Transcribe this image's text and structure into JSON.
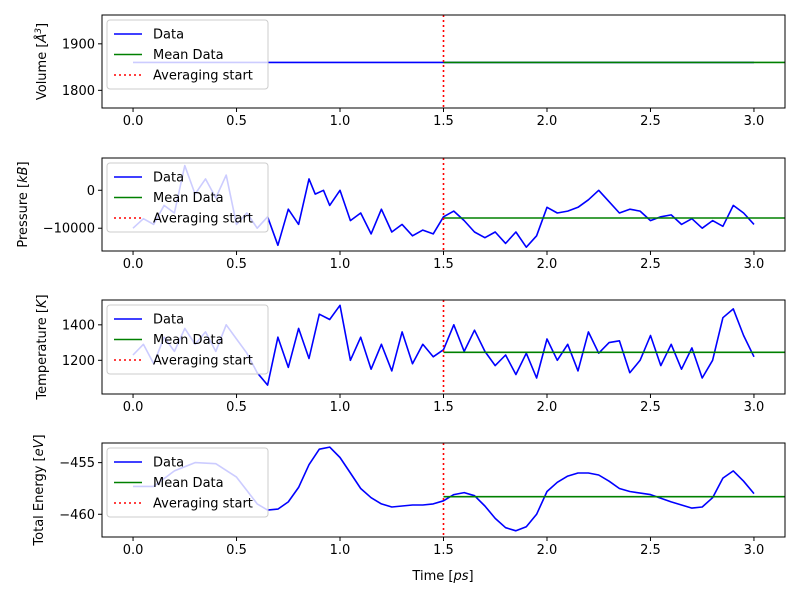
{
  "figure": {
    "xlabel": "Time [$ps$]"
  },
  "legend_labels": [
    "Data",
    "Mean Data",
    "Averaging start"
  ],
  "colors": {
    "data": "#0000ff",
    "mean": "#008000",
    "averaging_start": "#ff0000"
  },
  "chart_data": [
    {
      "type": "line",
      "ylabel": "Volume [$Å^3$]",
      "xlim": [
        -0.15,
        3.15
      ],
      "ylim": [
        1762,
        1962
      ],
      "xticks": [
        0.0,
        0.5,
        1.0,
        1.5,
        2.0,
        2.5,
        3.0
      ],
      "xtick_labels": [
        "0.0",
        "0.5",
        "1.0",
        "1.5",
        "2.0",
        "2.5",
        "3.0"
      ],
      "yticks": [
        1800,
        1900
      ],
      "ytick_labels": [
        "1800",
        "1900"
      ],
      "averaging_start": 1.5,
      "legend_position": "upper left",
      "series": [
        {
          "name": "Data",
          "x": [
            0.0,
            1.5,
            3.0
          ],
          "y": [
            1860,
            1860,
            1860
          ]
        },
        {
          "name": "Mean Data",
          "x": [
            1.5,
            3.15
          ],
          "y": [
            1860,
            1860
          ]
        }
      ]
    },
    {
      "type": "line",
      "ylabel": "Pressure [$kB$]",
      "xlim": [
        -0.15,
        3.15
      ],
      "ylim": [
        -16000,
        8500
      ],
      "xticks": [
        0.0,
        0.5,
        1.0,
        1.5,
        2.0,
        2.5,
        3.0
      ],
      "xtick_labels": [
        "0.0",
        "0.5",
        "1.0",
        "1.5",
        "2.0",
        "2.5",
        "3.0"
      ],
      "yticks": [
        -10000,
        0
      ],
      "ytick_labels": [
        "−10000",
        "0"
      ],
      "averaging_start": 1.5,
      "legend_position": "upper left",
      "series": [
        {
          "name": "Data",
          "x": [
            0.0,
            0.05,
            0.1,
            0.15,
            0.2,
            0.25,
            0.3,
            0.35,
            0.4,
            0.45,
            0.5,
            0.55,
            0.6,
            0.65,
            0.7,
            0.75,
            0.8,
            0.85,
            0.88,
            0.92,
            0.95,
            1.0,
            1.05,
            1.1,
            1.15,
            1.2,
            1.25,
            1.3,
            1.35,
            1.4,
            1.45,
            1.5,
            1.55,
            1.6,
            1.65,
            1.7,
            1.75,
            1.8,
            1.85,
            1.9,
            1.95,
            2.0,
            2.05,
            2.1,
            2.15,
            2.2,
            2.25,
            2.3,
            2.35,
            2.4,
            2.45,
            2.5,
            2.55,
            2.6,
            2.65,
            2.7,
            2.75,
            2.8,
            2.85,
            2.9,
            2.95,
            3.0
          ],
          "y": [
            -10000,
            -7500,
            -9000,
            -4000,
            -6000,
            6500,
            -1000,
            3000,
            -2000,
            4000,
            -9000,
            -6000,
            -10000,
            -7000,
            -14500,
            -5000,
            -9000,
            3000,
            -1000,
            0,
            -4000,
            0,
            -8000,
            -6000,
            -11500,
            -5000,
            -11000,
            -9000,
            -12000,
            -10500,
            -11500,
            -7000,
            -5500,
            -8000,
            -11000,
            -12500,
            -11000,
            -14000,
            -11000,
            -15000,
            -12000,
            -4500,
            -6000,
            -5500,
            -4500,
            -2500,
            0,
            -3000,
            -6000,
            -5000,
            -5500,
            -8000,
            -7000,
            -6500,
            -9000,
            -7500,
            -10000,
            -8000,
            -9500,
            -4000,
            -6000,
            -9000
          ]
        },
        {
          "name": "Mean Data",
          "x": [
            1.5,
            3.15
          ],
          "y": [
            -7300,
            -7300
          ]
        }
      ]
    },
    {
      "type": "line",
      "ylabel": "Temperature [$K$]",
      "xlim": [
        -0.15,
        3.15
      ],
      "ylim": [
        1010,
        1540
      ],
      "xticks": [
        0.0,
        0.5,
        1.0,
        1.5,
        2.0,
        2.5,
        3.0
      ],
      "xtick_labels": [
        "0.0",
        "0.5",
        "1.0",
        "1.5",
        "2.0",
        "2.5",
        "3.0"
      ],
      "yticks": [
        1200,
        1400
      ],
      "ytick_labels": [
        "1200",
        "1400"
      ],
      "averaging_start": 1.5,
      "legend_position": "upper left",
      "series": [
        {
          "name": "Data",
          "x": [
            0.0,
            0.05,
            0.1,
            0.15,
            0.2,
            0.25,
            0.3,
            0.35,
            0.4,
            0.45,
            0.5,
            0.55,
            0.6,
            0.65,
            0.7,
            0.75,
            0.8,
            0.85,
            0.9,
            0.95,
            1.0,
            1.05,
            1.1,
            1.15,
            1.2,
            1.25,
            1.3,
            1.35,
            1.4,
            1.45,
            1.5,
            1.55,
            1.6,
            1.65,
            1.7,
            1.75,
            1.8,
            1.85,
            1.9,
            1.95,
            2.0,
            2.05,
            2.1,
            2.15,
            2.2,
            2.25,
            2.3,
            2.35,
            2.4,
            2.45,
            2.5,
            2.55,
            2.6,
            2.65,
            2.7,
            2.75,
            2.8,
            2.85,
            2.9,
            2.95,
            3.0
          ],
          "y": [
            1230,
            1290,
            1180,
            1330,
            1250,
            1380,
            1290,
            1360,
            1250,
            1400,
            1320,
            1240,
            1130,
            1060,
            1330,
            1160,
            1380,
            1210,
            1460,
            1430,
            1510,
            1200,
            1330,
            1150,
            1290,
            1140,
            1360,
            1180,
            1290,
            1220,
            1260,
            1400,
            1250,
            1370,
            1250,
            1170,
            1230,
            1120,
            1240,
            1100,
            1320,
            1200,
            1290,
            1140,
            1360,
            1240,
            1300,
            1310,
            1130,
            1200,
            1340,
            1170,
            1290,
            1150,
            1270,
            1100,
            1200,
            1440,
            1490,
            1340,
            1220
          ]
        },
        {
          "name": "Mean Data",
          "x": [
            1.5,
            3.15
          ],
          "y": [
            1245,
            1245
          ]
        }
      ]
    },
    {
      "type": "line",
      "ylabel": "Total Energy [$eV$]",
      "xlim": [
        -0.15,
        3.15
      ],
      "ylim": [
        -462.2,
        -453.1
      ],
      "xticks": [
        0.0,
        0.5,
        1.0,
        1.5,
        2.0,
        2.5,
        3.0
      ],
      "xtick_labels": [
        "0.0",
        "0.5",
        "1.0",
        "1.5",
        "2.0",
        "2.5",
        "3.0"
      ],
      "yticks": [
        -460,
        -455
      ],
      "ytick_labels": [
        "−460",
        "−455"
      ],
      "averaging_start": 1.5,
      "legend_position": "upper left",
      "series": [
        {
          "name": "Data",
          "x": [
            0.0,
            0.1,
            0.2,
            0.3,
            0.4,
            0.5,
            0.55,
            0.6,
            0.65,
            0.7,
            0.75,
            0.8,
            0.85,
            0.9,
            0.95,
            1.0,
            1.05,
            1.1,
            1.15,
            1.2,
            1.25,
            1.3,
            1.35,
            1.4,
            1.45,
            1.5,
            1.55,
            1.6,
            1.65,
            1.7,
            1.75,
            1.8,
            1.85,
            1.9,
            1.95,
            2.0,
            2.05,
            2.1,
            2.15,
            2.2,
            2.25,
            2.3,
            2.35,
            2.4,
            2.5,
            2.6,
            2.7,
            2.75,
            2.8,
            2.85,
            2.9,
            2.95,
            3.0
          ],
          "y": [
            -457.3,
            -457.3,
            -455.8,
            -455.0,
            -455.1,
            -456.4,
            -457.7,
            -459.0,
            -459.6,
            -459.5,
            -458.8,
            -457.4,
            -455.2,
            -453.7,
            -453.5,
            -454.5,
            -456.0,
            -457.5,
            -458.4,
            -459.0,
            -459.3,
            -459.2,
            -459.1,
            -459.1,
            -459.0,
            -458.7,
            -458.1,
            -457.9,
            -458.2,
            -459.2,
            -460.4,
            -461.3,
            -461.6,
            -461.2,
            -460.0,
            -457.8,
            -456.9,
            -456.3,
            -456.0,
            -456.0,
            -456.2,
            -456.8,
            -457.5,
            -457.8,
            -458.1,
            -458.8,
            -459.4,
            -459.3,
            -458.4,
            -456.5,
            -455.8,
            -456.8,
            -458.0
          ]
        },
        {
          "name": "Mean Data",
          "x": [
            1.5,
            3.15
          ],
          "y": [
            -458.3,
            -458.3
          ]
        }
      ]
    }
  ]
}
